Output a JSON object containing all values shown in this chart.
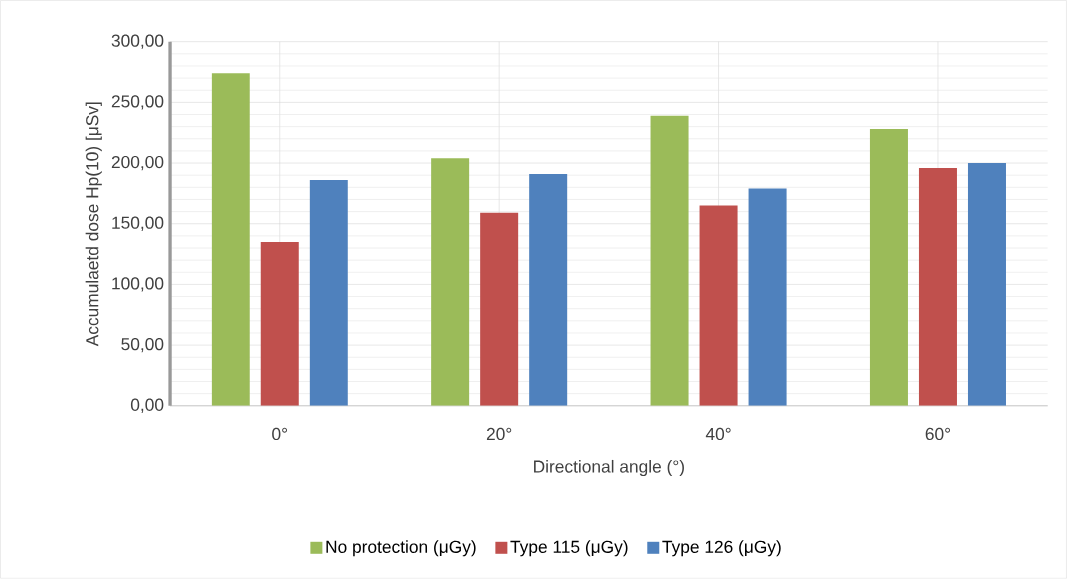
{
  "chart_data": {
    "type": "bar",
    "xlabel": "Directional angle (°)",
    "ylabel": "Accumulaetd dose Hp(10) [μSv]",
    "categories": [
      "0°",
      "20°",
      "40°",
      "60°"
    ],
    "series": [
      {
        "name": "No protection (μGy)",
        "color": "#9bbb59",
        "values": [
          274,
          204,
          239,
          228
        ]
      },
      {
        "name": "Type 115 (μGy)",
        "color": "#c0504d",
        "values": [
          135,
          159,
          165,
          196
        ]
      },
      {
        "name": "Type 126 (μGy)",
        "color": "#4f81bd",
        "values": [
          186,
          191,
          179,
          200
        ]
      }
    ],
    "ylim": [
      0,
      300
    ],
    "yticks": [
      {
        "value": 0,
        "label": "0,00"
      },
      {
        "value": 50,
        "label": "50,00"
      },
      {
        "value": 100,
        "label": "100,00"
      },
      {
        "value": 150,
        "label": "150,00"
      },
      {
        "value": 200,
        "label": "200,00"
      },
      {
        "value": 250,
        "label": "250,00"
      },
      {
        "value": 300,
        "label": "300,00"
      }
    ],
    "grid": true,
    "legend": "bottom"
  }
}
